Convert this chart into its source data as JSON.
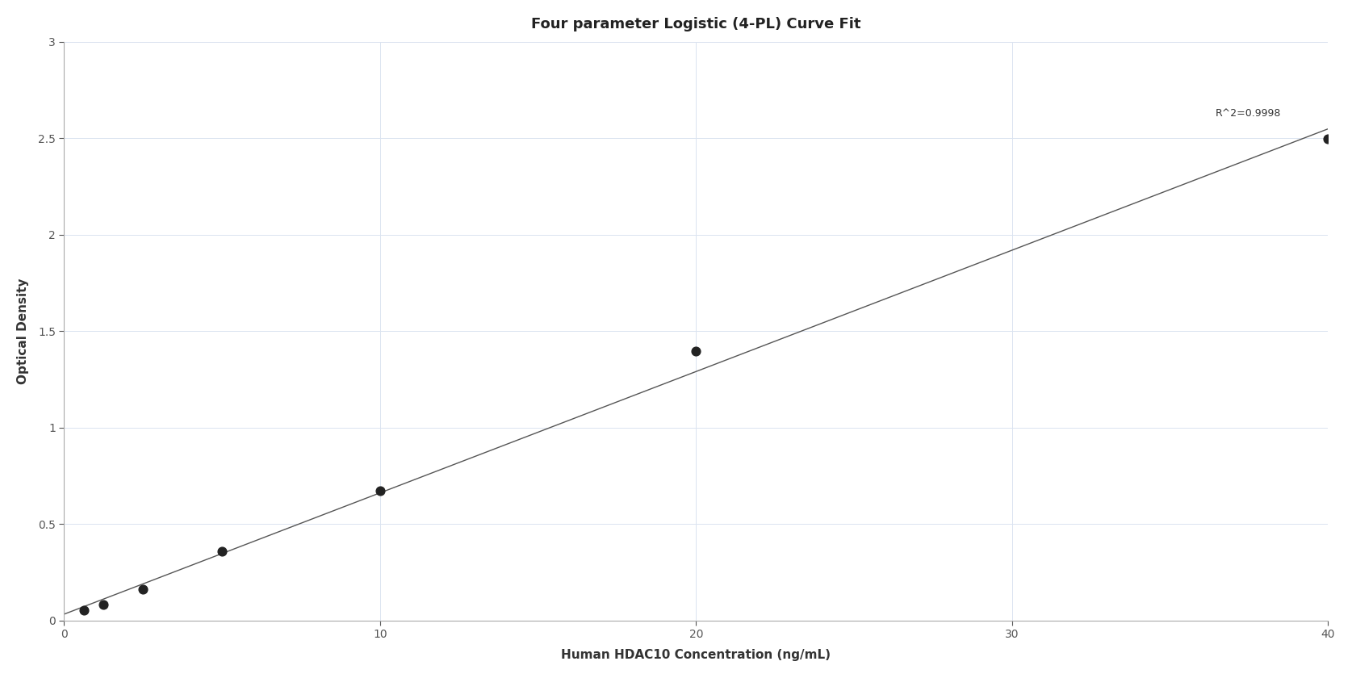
{
  "title": "Four parameter Logistic (4-PL) Curve Fit",
  "xlabel": "Human HDAC10 Concentration (ng/mL)",
  "ylabel": "Optical Density",
  "x_data": [
    0.625,
    1.25,
    2.5,
    5.0,
    10.0,
    20.0,
    40.0
  ],
  "y_data": [
    0.054,
    0.083,
    0.162,
    0.357,
    0.672,
    1.395,
    2.494
  ],
  "xlim": [
    0,
    40
  ],
  "ylim": [
    0,
    3
  ],
  "xticks": [
    0,
    10,
    20,
    30,
    40
  ],
  "yticks": [
    0,
    0.5,
    1.0,
    1.5,
    2.0,
    2.5,
    3.0
  ],
  "r_squared": "R^2=0.9998",
  "line_color": "#555555",
  "dot_color": "#222222",
  "dot_size": 60,
  "grid_color": "#dae3f0",
  "background_color": "#ffffff",
  "title_fontsize": 13,
  "label_fontsize": 11,
  "tick_fontsize": 10,
  "annotation_fontsize": 9
}
